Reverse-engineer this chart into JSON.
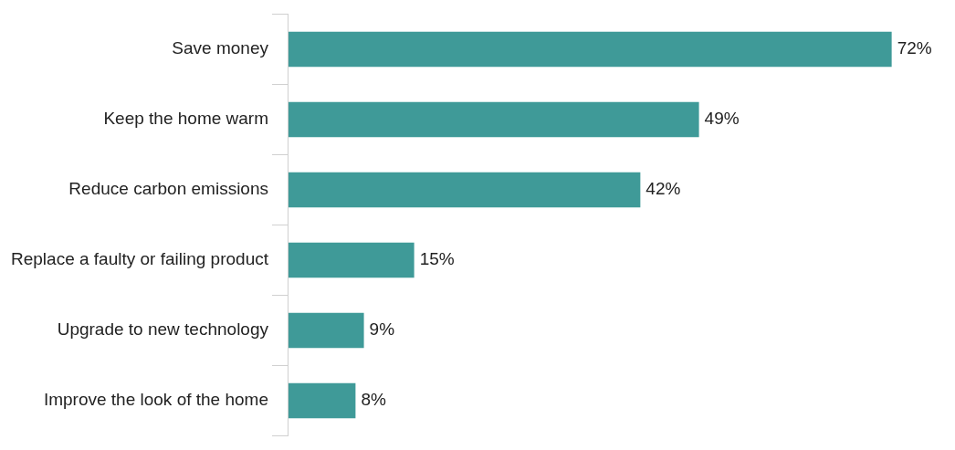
{
  "chart_data": {
    "type": "bar",
    "orientation": "horizontal",
    "tick_labels": "y",
    "categories": [
      "Save money",
      "Keep the home warm",
      "Reduce carbon emissions",
      "Replace a faulty or failing product",
      "Upgrade to new technology",
      "Improve the look of the home"
    ],
    "values": [
      72,
      49,
      42,
      15,
      9,
      8
    ],
    "value_labels": [
      "72%",
      "49%",
      "42%",
      "15%",
      "9%",
      "8%"
    ],
    "color": "#3f9a98"
  }
}
